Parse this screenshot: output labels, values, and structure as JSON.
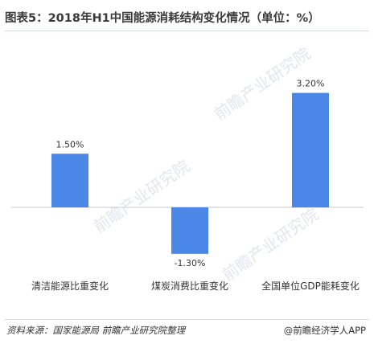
{
  "title": "图表5：2018年H1中国能源消耗结构变化情况（单位：%）",
  "chart_data": {
    "type": "bar",
    "categories": [
      "清洁能源比重变化",
      "煤炭消费比重变化",
      "全国单位GDP能耗变化"
    ],
    "values": [
      1.5,
      -1.3,
      3.2
    ],
    "data_labels": [
      "1.50%",
      "-1.30%",
      "3.20%"
    ],
    "title": "",
    "xlabel": "",
    "ylabel": "",
    "ylim": [
      -2.0,
      4.0
    ],
    "grid": false,
    "legend": "none",
    "bar_color": "#4a87e6"
  },
  "footer": {
    "source": "资料来源：国家能源局  前瞻产业研究院整理",
    "brand": "@前瞻经济学人APP"
  },
  "watermark": {
    "text": "前瞻产业研究院"
  }
}
